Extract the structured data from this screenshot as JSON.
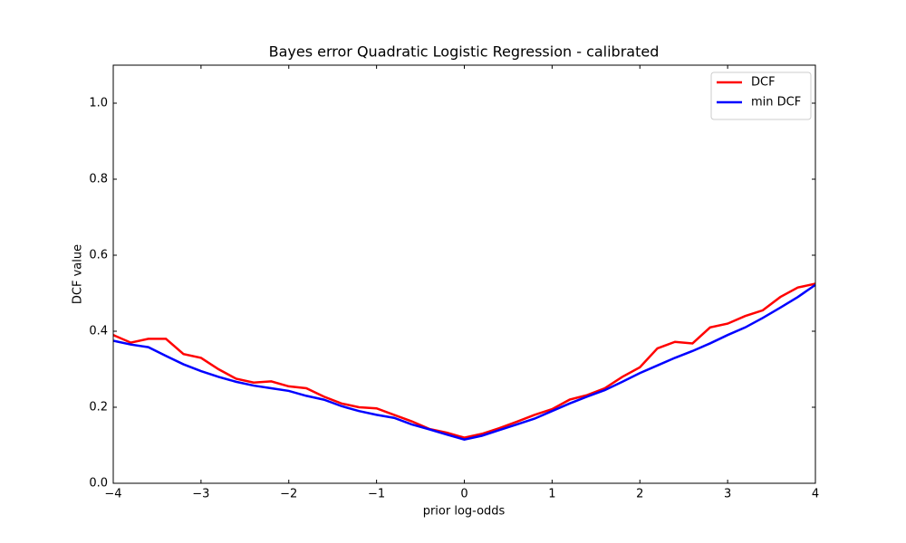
{
  "chart_data": {
    "type": "line",
    "title": "Bayes error Quadratic Logistic Regression - calibrated",
    "xlabel": "prior log-odds",
    "ylabel": "DCF value",
    "x": [
      -4.0,
      -3.8,
      -3.6,
      -3.4,
      -3.2,
      -3.0,
      -2.8,
      -2.6,
      -2.4,
      -2.2,
      -2.0,
      -1.8,
      -1.6,
      -1.4,
      -1.2,
      -1.0,
      -0.8,
      -0.6,
      -0.4,
      -0.2,
      0.0,
      0.2,
      0.4,
      0.6,
      0.8,
      1.0,
      1.2,
      1.4,
      1.6,
      1.8,
      2.0,
      2.2,
      2.4,
      2.6,
      2.8,
      3.0,
      3.2,
      3.4,
      3.6,
      3.8,
      4.0
    ],
    "series": [
      {
        "name": "DCF",
        "color": "#ff0000",
        "values": [
          0.39,
          0.37,
          0.38,
          0.38,
          0.34,
          0.33,
          0.3,
          0.275,
          0.265,
          0.268,
          0.255,
          0.25,
          0.228,
          0.21,
          0.2,
          0.197,
          0.18,
          0.163,
          0.143,
          0.133,
          0.12,
          0.13,
          0.145,
          0.162,
          0.18,
          0.195,
          0.22,
          0.232,
          0.25,
          0.28,
          0.305,
          0.355,
          0.372,
          0.368,
          0.41,
          0.42,
          0.44,
          0.455,
          0.49,
          0.515,
          0.525
        ]
      },
      {
        "name": "min DCF",
        "color": "#0000ff",
        "values": [
          0.375,
          0.365,
          0.358,
          0.335,
          0.313,
          0.295,
          0.28,
          0.267,
          0.257,
          0.25,
          0.243,
          0.23,
          0.22,
          0.203,
          0.19,
          0.18,
          0.172,
          0.155,
          0.142,
          0.128,
          0.115,
          0.125,
          0.14,
          0.155,
          0.17,
          0.19,
          0.21,
          0.228,
          0.245,
          0.267,
          0.29,
          0.31,
          0.33,
          0.348,
          0.368,
          0.39,
          0.41,
          0.435,
          0.462,
          0.49,
          0.522
        ]
      }
    ],
    "xlim": [
      -4,
      4
    ],
    "xticks": [
      {
        "value": -4,
        "label": "−4"
      },
      {
        "value": -3,
        "label": "−3"
      },
      {
        "value": -2,
        "label": "−2"
      },
      {
        "value": -1,
        "label": "−1"
      },
      0,
      1,
      2,
      3,
      4
    ],
    "ylim": [
      0,
      1.1
    ],
    "yticks": [
      {
        "value": 0,
        "label": "0.0"
      },
      0.2,
      0.4,
      0.6,
      0.8,
      {
        "value": 1,
        "label": "1.0"
      }
    ],
    "grid": false,
    "legend": "upper right"
  }
}
